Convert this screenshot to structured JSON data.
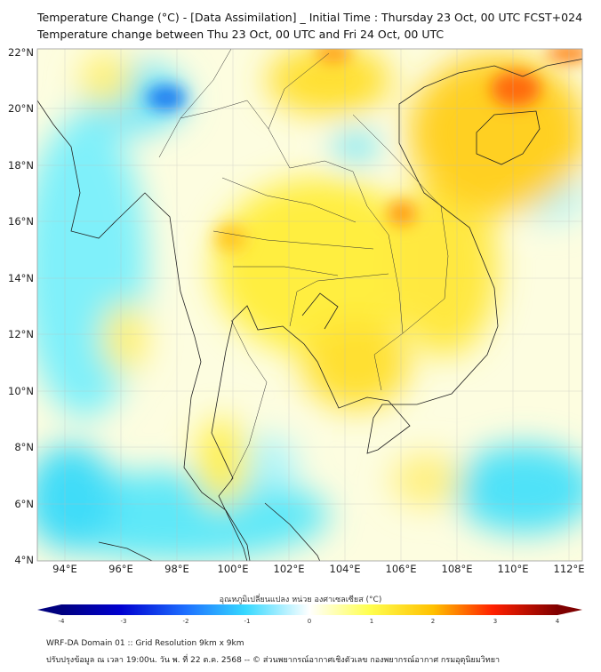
{
  "header": {
    "title_line1": "Temperature Change (°C) - [Data Assimilation] _ Initial Time : Thursday 23 Oct, 00 UTC FCST+024",
    "title_line2": "Temperature change between Thu 23 Oct, 00 UTC and Fri 24 Oct, 00 UTC"
  },
  "map": {
    "lat_labels": [
      "22°N",
      "20°N",
      "18°N",
      "16°N",
      "14°N",
      "12°N",
      "10°N",
      "8°N",
      "6°N",
      "4°N"
    ],
    "lon_labels": [
      "94°E",
      "96°E",
      "98°E",
      "100°E",
      "102°E",
      "104°E",
      "106°E",
      "108°E",
      "110°E",
      "112°E"
    ],
    "extent": {
      "lon_min": 93,
      "lon_max": 112.5,
      "lat_min": 4,
      "lat_max": 22.2
    }
  },
  "colorbar": {
    "title": "อุณหภูมิเปลี่ยนแปลง หน่วย องศาเซลเซียส (°C)",
    "ticks": [
      "-4",
      "-3",
      "-2",
      "-1",
      "0",
      "1",
      "2",
      "3",
      "4"
    ],
    "range": [
      -4,
      4
    ],
    "colors": [
      "#00007f",
      "#0000ff",
      "#1e90ff",
      "#40e0ff",
      "#ffffff",
      "#ffff40",
      "#ffc000",
      "#ff4000",
      "#ff0000",
      "#7f0000"
    ]
  },
  "footer": {
    "line1": "WRF-DA Domain 01 :: Grid Resolution 9km x 9km",
    "line2": "ปรับปรุงข้อมูล ณ เวลา 19:00น. วัน พ. ที่ 22 ต.ค. 2568 -- © ส่วนพยากรณ์อากาศเชิงตัวเลข กองพยากรณ์อากาศ กรมอุตุนิยมวิทยา"
  }
}
